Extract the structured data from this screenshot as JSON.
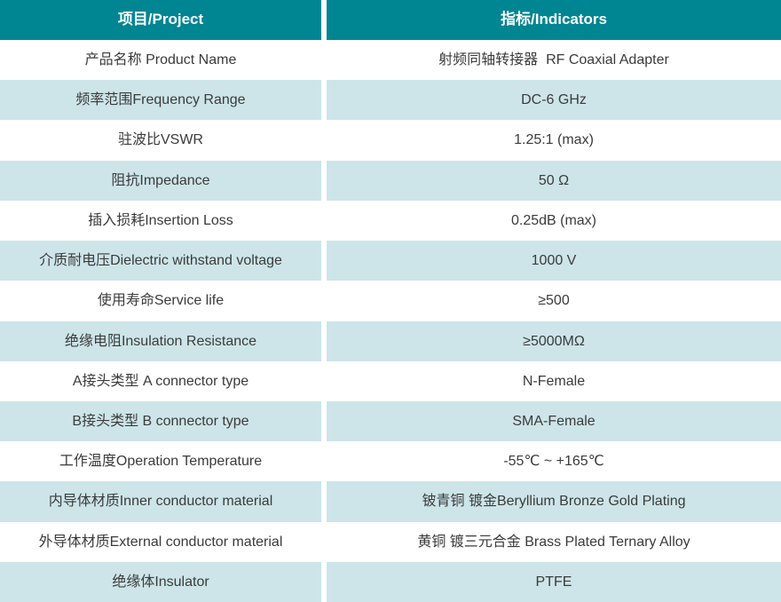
{
  "table": {
    "columns": [
      {
        "label": "项目/Project"
      },
      {
        "label": "指标/Indicators"
      }
    ],
    "rows": [
      {
        "project": "产品名称 Product Name",
        "indicator": "射频同轴转接器  RF Coaxial Adapter"
      },
      {
        "project": "频率范围Frequency Range",
        "indicator": "DC-6 GHz"
      },
      {
        "project": "驻波比VSWR",
        "indicator": "1.25:1 (max)"
      },
      {
        "project": "阻抗Impedance",
        "indicator": "50 Ω"
      },
      {
        "project": "插入损耗Insertion Loss",
        "indicator": "0.25dB (max)"
      },
      {
        "project": "介质耐电压Dielectric withstand voltage",
        "indicator": "1000 V"
      },
      {
        "project": "使用寿命Service life",
        "indicator": "≥500"
      },
      {
        "project": "绝缘电阻Insulation Resistance",
        "indicator": "≥5000MΩ"
      },
      {
        "project": "A接头类型 A connector type",
        "indicator": "N-Female"
      },
      {
        "project": "B接头类型 B connector type",
        "indicator": "SMA-Female"
      },
      {
        "project": "工作温度Operation Temperature",
        "indicator": "-55℃ ~ +165℃"
      },
      {
        "project": "内导体材质Inner conductor material",
        "indicator": "铍青铜 镀金Beryllium Bronze Gold Plating"
      },
      {
        "project": "外导体材质External conductor material",
        "indicator": "黄铜 镀三元合金 Brass Plated Ternary Alloy"
      },
      {
        "project": "绝缘体Insulator",
        "indicator": "PTFE"
      }
    ]
  },
  "colors": {
    "header_bg": "#008593",
    "header_text": "#ffffff",
    "row_shaded_bg": "#cde5e9",
    "row_bg": "#ffffff",
    "text": "#3b3b3b",
    "divider": "#ffffff"
  }
}
